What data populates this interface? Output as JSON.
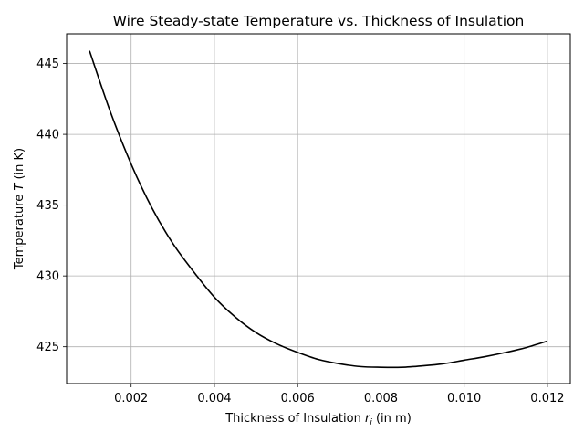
{
  "chart_data": {
    "type": "line",
    "title": "Wire Steady-state Temperature vs. Thickness of Insulation",
    "xlabel": "Thickness of Insulation r_i (in m)",
    "xlabel_parts": {
      "before": "Thickness of Insulation ",
      "var": "r",
      "sub": "i",
      "after": " (in m)"
    },
    "ylabel": "Temperature T (in K)",
    "ylabel_parts": {
      "before": "Temperature ",
      "var": "T",
      "after": " (in K)"
    },
    "xlim": [
      0.00045,
      0.01255
    ],
    "ylim": [
      422.4,
      447.1
    ],
    "grid": true,
    "xticks": [
      0.002,
      0.004,
      0.006,
      0.008,
      0.01,
      0.012
    ],
    "xtick_labels": [
      "0.002",
      "0.004",
      "0.006",
      "0.008",
      "0.010",
      "0.012"
    ],
    "yticks": [
      425,
      430,
      435,
      440,
      445
    ],
    "ytick_labels": [
      "425",
      "430",
      "435",
      "440",
      "445"
    ],
    "series": [
      {
        "color": "#000000",
        "x": [
          0.001,
          0.0015,
          0.002,
          0.0025,
          0.003,
          0.0035,
          0.004,
          0.0045,
          0.005,
          0.0055,
          0.006,
          0.0065,
          0.007,
          0.0075,
          0.008,
          0.0085,
          0.009,
          0.0095,
          0.01,
          0.0105,
          0.011,
          0.0115,
          0.012
        ],
        "y": [
          445.9,
          441.6,
          437.9,
          434.8,
          432.3,
          430.3,
          428.5,
          427.1,
          426.0,
          425.2,
          424.6,
          424.1,
          423.8,
          423.6,
          423.55,
          423.55,
          423.65,
          423.8,
          424.05,
          424.3,
          424.6,
          424.95,
          425.4
        ]
      }
    ]
  }
}
